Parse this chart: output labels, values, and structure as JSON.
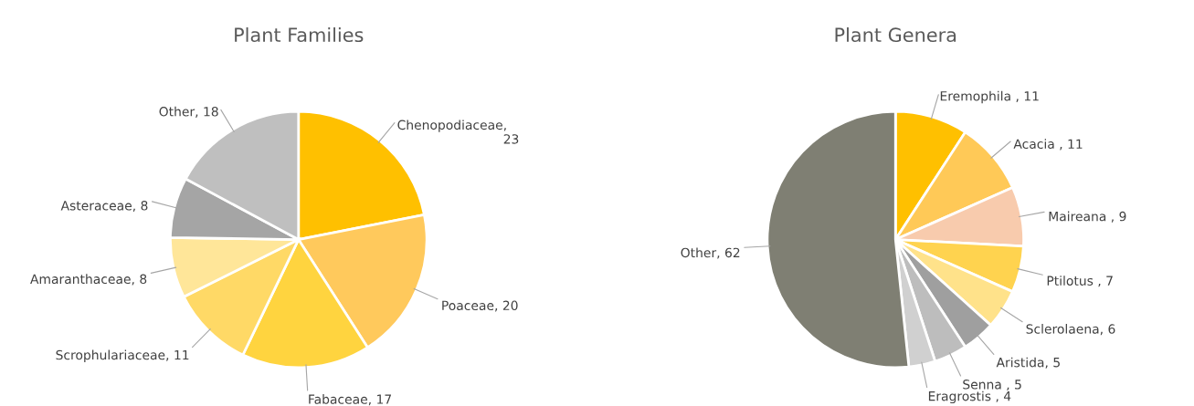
{
  "chart_data": [
    {
      "type": "pie",
      "title": "Plant Families",
      "categories": [
        "Chenopodiaceae",
        "Poaceae",
        "Fabaceae",
        "Scrophulariaceae",
        "Amaranthaceae",
        "Asteraceae",
        "Other"
      ],
      "values": [
        23,
        20,
        17,
        11,
        8,
        8,
        18
      ],
      "value_labels": [
        ",\n23",
        ", 20",
        ", 17",
        ", 11",
        ", 8",
        ", 8",
        ", 18"
      ],
      "colors": [
        "#ffc000",
        "#ffc95c",
        "#ffd43f",
        "#ffd966",
        "#ffe699",
        "#a5a5a5",
        "#bfbfbf"
      ]
    },
    {
      "type": "pie",
      "title": "Plant Genera",
      "categories": [
        "Eremophila",
        "Acacia",
        "Maireana",
        "Ptilotus",
        "Sclerolaena",
        "Aristida",
        "Senna",
        "Eragrostis",
        "Other"
      ],
      "values": [
        11,
        11,
        9,
        7,
        6,
        5,
        5,
        4,
        62
      ],
      "value_labels": [
        " , 11",
        " , 11",
        " , 9",
        " , 7",
        ", 6",
        ", 5",
        " , 5",
        " , 4",
        ", 62"
      ],
      "colors": [
        "#ffc000",
        "#ffc957",
        "#f8cbad",
        "#ffd34f",
        "#ffe28a",
        "#9f9f9f",
        "#bdbdbd",
        "#d0d0d0",
        "#7f7f73"
      ]
    }
  ]
}
